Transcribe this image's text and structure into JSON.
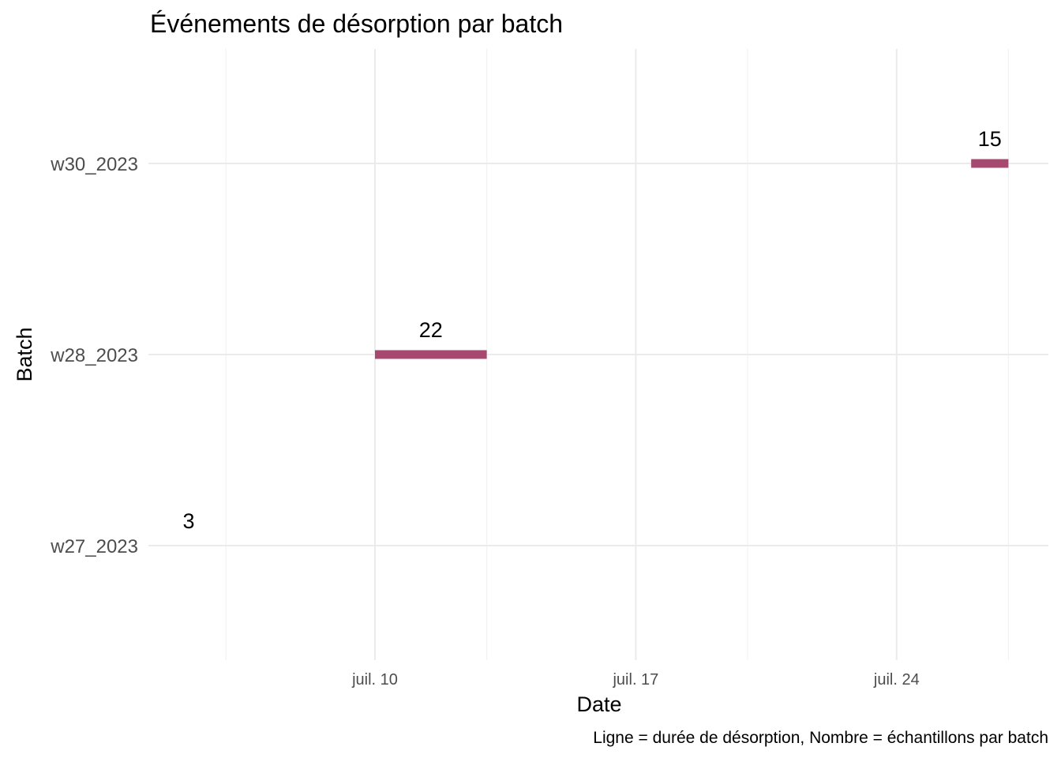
{
  "chart_data": {
    "type": "timeline",
    "title": "Événements de désorption par batch",
    "xlabel": "Date",
    "ylabel": "Batch",
    "caption": "Ligne = durée de désorption, Nombre = échantillons par batch",
    "categories": [
      "w27_2023",
      "w28_2023",
      "w30_2023"
    ],
    "x_ticks": [
      {
        "date": "2023-07-10",
        "label": "juil. 10"
      },
      {
        "date": "2023-07-17",
        "label": "juil. 17"
      },
      {
        "date": "2023-07-24",
        "label": "juil. 24"
      }
    ],
    "x_minor_ticks": [
      "2023-07-06",
      "2023-07-13",
      "2023-07-20",
      "2023-07-27"
    ],
    "xlim": [
      "2023-07-02",
      "2023-07-28"
    ],
    "series": [
      {
        "batch": "w27_2023",
        "start": "2023-07-05",
        "end": "2023-07-05",
        "count": "3"
      },
      {
        "batch": "w28_2023",
        "start": "2023-07-10",
        "end": "2023-07-13",
        "count": "22"
      },
      {
        "batch": "w30_2023",
        "start": "2023-07-26",
        "end": "2023-07-27",
        "count": "15"
      }
    ],
    "segment_color": "#a64870",
    "grid": true,
    "legend": "none"
  }
}
